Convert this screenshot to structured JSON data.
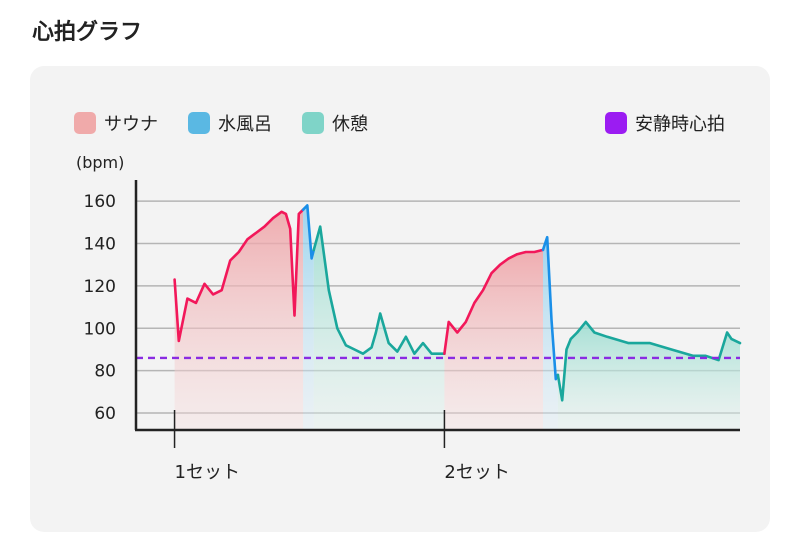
{
  "page": {
    "title": "心拍グラフ"
  },
  "legend": {
    "items": [
      {
        "label": "サウナ",
        "color": "#f0aaaa"
      },
      {
        "label": "水風呂",
        "color": "#5ab8e3"
      },
      {
        "label": "休憩",
        "color": "#7fd4c8"
      }
    ],
    "resting": {
      "label": "安静時心拍",
      "color": "#9b1cf2"
    }
  },
  "colors": {
    "sauna_line": "#f2185a",
    "cold_line": "#1a8fe8",
    "rest_line": "#1aa79c",
    "resting_line": "#8a2be2"
  },
  "chart_data": {
    "type": "line",
    "ylabel": "(bpm)",
    "ylim": [
      52,
      170
    ],
    "xlim": [
      0,
      282
    ],
    "yticks": [
      60,
      80,
      100,
      120,
      140,
      160
    ],
    "resting_heart_rate": 86,
    "grid": true,
    "set_labels": [
      {
        "label": "1セット",
        "x": 18
      },
      {
        "label": "2セット",
        "x": 144
      }
    ],
    "segments": [
      {
        "phase": "sauna",
        "x": [
          18,
          20,
          24,
          28,
          32,
          36,
          40,
          44,
          48,
          52,
          56,
          60,
          64,
          68,
          70,
          72,
          74,
          76,
          78
        ],
        "y": [
          123,
          94,
          114,
          112,
          121,
          116,
          118,
          132,
          136,
          142,
          145,
          148,
          152,
          155,
          154,
          147,
          106,
          154,
          156
        ]
      },
      {
        "phase": "cold",
        "x": [
          78,
          80,
          82,
          83
        ],
        "y": [
          156,
          158,
          133,
          137
        ]
      },
      {
        "phase": "rest",
        "x": [
          83,
          86,
          90,
          94,
          98,
          102,
          106,
          110,
          112,
          114,
          118,
          122,
          126,
          130,
          134,
          138,
          144
        ],
        "y": [
          137,
          148,
          118,
          100,
          92,
          90,
          88,
          91,
          98,
          107,
          93,
          89,
          96,
          88,
          93,
          88,
          88
        ]
      },
      {
        "phase": "sauna",
        "x": [
          144,
          146,
          150,
          154,
          158,
          162,
          166,
          170,
          174,
          178,
          182,
          186,
          190
        ],
        "y": [
          88,
          103,
          98,
          103,
          112,
          118,
          126,
          130,
          133,
          135,
          136,
          136,
          137
        ]
      },
      {
        "phase": "cold",
        "x": [
          190,
          192,
          194,
          196,
          197
        ],
        "y": [
          137,
          143,
          104,
          76,
          78
        ]
      },
      {
        "phase": "rest",
        "x": [
          197,
          199,
          201,
          203,
          206,
          210,
          214,
          220,
          230,
          240,
          250,
          260,
          266,
          272,
          276,
          278,
          282
        ],
        "y": [
          78,
          66,
          90,
          95,
          98,
          103,
          98,
          96,
          93,
          93,
          90,
          87,
          87,
          85,
          98,
          95,
          93
        ]
      }
    ]
  }
}
